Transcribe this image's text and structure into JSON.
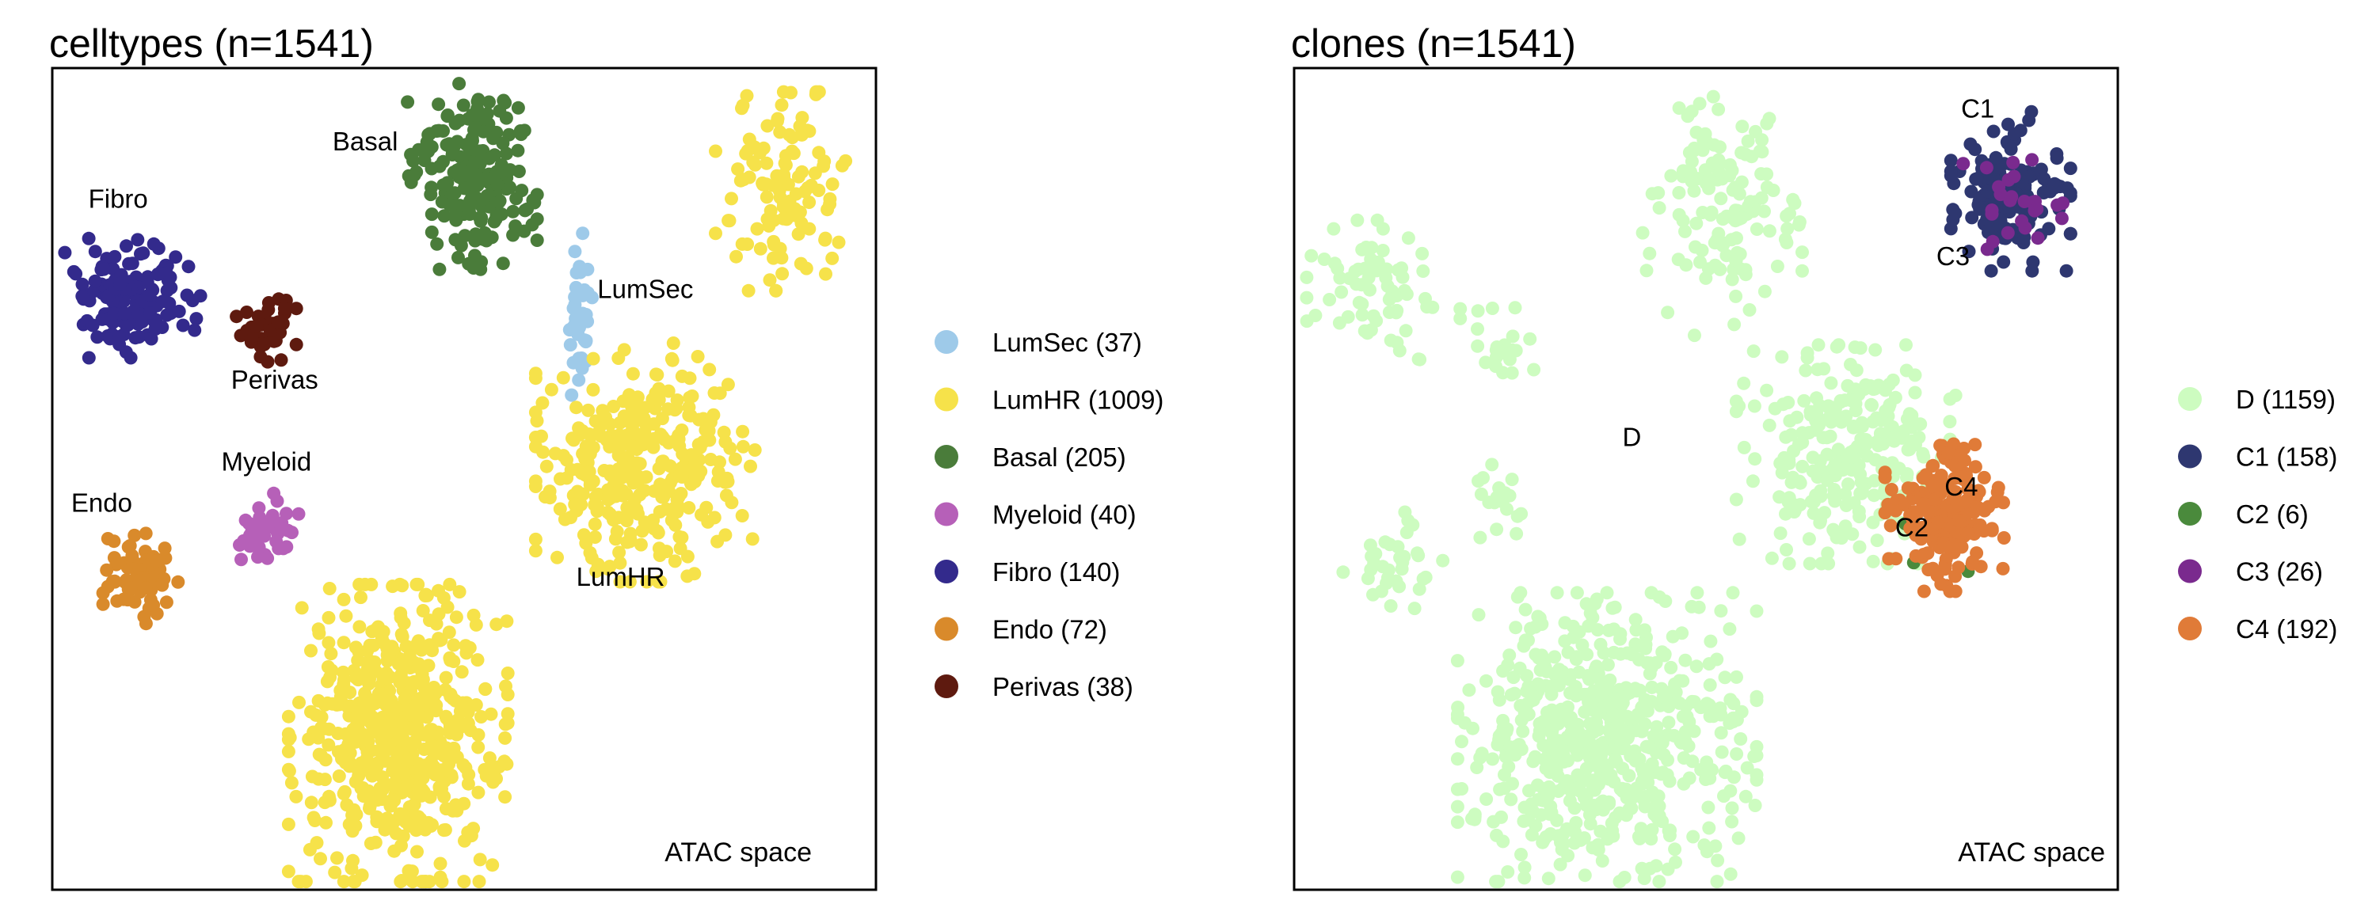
{
  "chart_data": [
    {
      "type": "scatter",
      "title": "celltypes (n=1541)",
      "xlabel": "",
      "ylabel": "",
      "note": "ATAC space",
      "grid": false,
      "legend_position": "right",
      "xlim": [
        0,
        100
      ],
      "ylim": [
        0,
        100
      ],
      "groups": [
        {
          "name": "LumSec (37)",
          "label": "LumSec",
          "label_at": [
            72,
            72
          ],
          "color": "#9ecae9",
          "clusters": [
            {
              "center": [
                64,
                69
              ],
              "spread": [
                1.5,
                9
              ],
              "n": 37
            }
          ]
        },
        {
          "name": "LumHR (1009)",
          "label": "LumHR",
          "label_at": [
            69,
            37
          ],
          "color": "#f6e24a",
          "clusters": [
            {
              "center": [
                42,
                19
              ],
              "spread": [
                11,
                15
              ],
              "n": 560
            },
            {
              "center": [
                72,
                52
              ],
              "spread": [
                11,
                12
              ],
              "n": 330
            },
            {
              "center": [
                89,
                85
              ],
              "spread": [
                7,
                10
              ],
              "n": 119
            }
          ]
        },
        {
          "name": "Basal (205)",
          "label": "Basal",
          "label_at": [
            38,
            90
          ],
          "color": "#4a7c3a",
          "clusters": [
            {
              "center": [
                51,
                87
              ],
              "spread": [
                6.5,
                9.5
              ],
              "n": 205
            }
          ]
        },
        {
          "name": "Myeloid (40)",
          "label": "Myeloid",
          "label_at": [
            26,
            51
          ],
          "color": "#b660b8",
          "clusters": [
            {
              "center": [
                26,
                44
              ],
              "spread": [
                4,
                3.5
              ],
              "n": 40
            }
          ]
        },
        {
          "name": "Fibro (140)",
          "label": "Fibro",
          "label_at": [
            8,
            83
          ],
          "color": "#332a8c",
          "clusters": [
            {
              "center": [
                10,
                72
              ],
              "spread": [
                7,
                6
              ],
              "n": 140
            }
          ]
        },
        {
          "name": "Endo (72)",
          "label": "Endo",
          "label_at": [
            6,
            46
          ],
          "color": "#d98a2b",
          "clusters": [
            {
              "center": [
                11,
                38
              ],
              "spread": [
                4,
                5
              ],
              "n": 72
            }
          ]
        },
        {
          "name": "Perivas (38)",
          "label": "Perivas",
          "label_at": [
            27,
            61
          ],
          "color": "#5e1a0f",
          "clusters": [
            {
              "center": [
                26,
                68
              ],
              "spread": [
                3,
                3.5
              ],
              "n": 38
            }
          ]
        }
      ]
    },
    {
      "type": "scatter",
      "title": "clones (n=1541)",
      "xlabel": "",
      "ylabel": "",
      "note": "ATAC space",
      "grid": false,
      "legend_position": "right",
      "xlim": [
        0,
        100
      ],
      "ylim": [
        0,
        100
      ],
      "groups": [
        {
          "name": "D (1159)",
          "label": "D",
          "label_at": [
            41,
            54
          ],
          "color": "#cdfcc0",
          "clusters": [
            {
              "center": [
                38,
                18
              ],
              "spread": [
                15,
                15
              ],
              "n": 610
            },
            {
              "center": [
                67,
                53
              ],
              "spread": [
                11,
                11
              ],
              "n": 260
            },
            {
              "center": [
                52,
                82
              ],
              "spread": [
                8,
                12
              ],
              "n": 140
            },
            {
              "center": [
                10,
                73
              ],
              "spread": [
                7,
                7
              ],
              "n": 70
            },
            {
              "center": [
                25,
                66
              ],
              "spread": [
                4,
                4
              ],
              "n": 25
            },
            {
              "center": [
                12,
                40
              ],
              "spread": [
                5,
                5
              ],
              "n": 34
            },
            {
              "center": [
                25,
                47
              ],
              "spread": [
                4,
                4
              ],
              "n": 20
            }
          ]
        },
        {
          "name": "C1 (158)",
          "label": "C1",
          "label_at": [
            83,
            94
          ],
          "color": "#2e3770",
          "clusters": [
            {
              "center": [
                87,
                85
              ],
              "spread": [
                6,
                8
              ],
              "n": 158
            }
          ]
        },
        {
          "name": "C2 (6)",
          "label": "C2",
          "label_at": [
            75,
            43
          ],
          "color": "#4a8a3c",
          "clusters": [
            {
              "center": [
                80,
                44
              ],
              "spread": [
                5,
                5
              ],
              "n": 6
            }
          ]
        },
        {
          "name": "C3 (26)",
          "label": "C3",
          "label_at": [
            80,
            76
          ],
          "color": "#7a2a8e",
          "clusters": [
            {
              "center": [
                87,
                84
              ],
              "spread": [
                6,
                5
              ],
              "n": 26
            }
          ]
        },
        {
          "name": "C4 (192)",
          "label": "C4",
          "label_at": [
            81,
            48
          ],
          "color": "#e07b38",
          "clusters": [
            {
              "center": [
                79,
                46
              ],
              "spread": [
                6,
                8
              ],
              "n": 192
            }
          ]
        }
      ]
    }
  ]
}
